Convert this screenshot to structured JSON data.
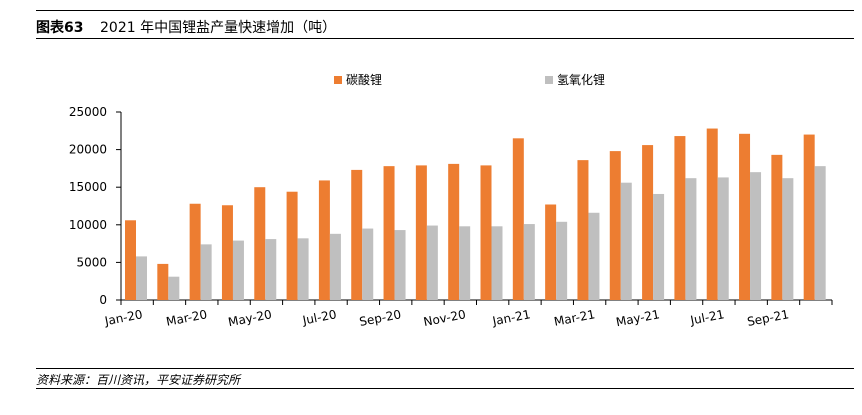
{
  "header": {
    "fig_label": "图表63",
    "title": "2021 年中国锂盐产量快速增加（吨）"
  },
  "footer": {
    "source": "资料来源：百川资讯，平安证券研究所"
  },
  "colors": {
    "series_1": "#ED7D31",
    "series_2": "#BFBFBF"
  },
  "chart_data": {
    "type": "bar",
    "title": "",
    "xlabel": "",
    "ylabel": "",
    "ylim": [
      0,
      25000
    ],
    "yticks": [
      0,
      5000,
      10000,
      15000,
      20000,
      25000
    ],
    "grid": false,
    "legend_position": "top",
    "categories": [
      "Jan-20",
      "Feb-20",
      "Mar-20",
      "Apr-20",
      "May-20",
      "Jun-20",
      "Jul-20",
      "Aug-20",
      "Sep-20",
      "Oct-20",
      "Nov-20",
      "Dec-20",
      "Jan-21",
      "Feb-21",
      "Mar-21",
      "Apr-21",
      "May-21",
      "Jun-21",
      "Jul-21",
      "Aug-21",
      "Sep-21",
      "Oct-21"
    ],
    "xtick_labels": [
      "Jan-20",
      "",
      "Mar-20",
      "",
      "May-20",
      "",
      "Jul-20",
      "",
      "Sep-20",
      "",
      "Nov-20",
      "",
      "Jan-21",
      "",
      "Mar-21",
      "",
      "May-21",
      "",
      "Jul-21",
      "",
      "Sep-21",
      ""
    ],
    "series": [
      {
        "name": "碳酸锂",
        "values": [
          10600,
          4800,
          12800,
          12600,
          15000,
          14400,
          15900,
          17300,
          17800,
          17900,
          18100,
          17900,
          21500,
          12700,
          18600,
          19800,
          20600,
          21800,
          22800,
          22100,
          19300,
          22000
        ]
      },
      {
        "name": "氢氧化锂",
        "values": [
          5800,
          3100,
          7400,
          7900,
          8100,
          8200,
          8800,
          9500,
          9300,
          9900,
          9800,
          9800,
          10100,
          10400,
          11600,
          15600,
          14100,
          16200,
          16300,
          17000,
          16200,
          17800
        ]
      }
    ]
  }
}
